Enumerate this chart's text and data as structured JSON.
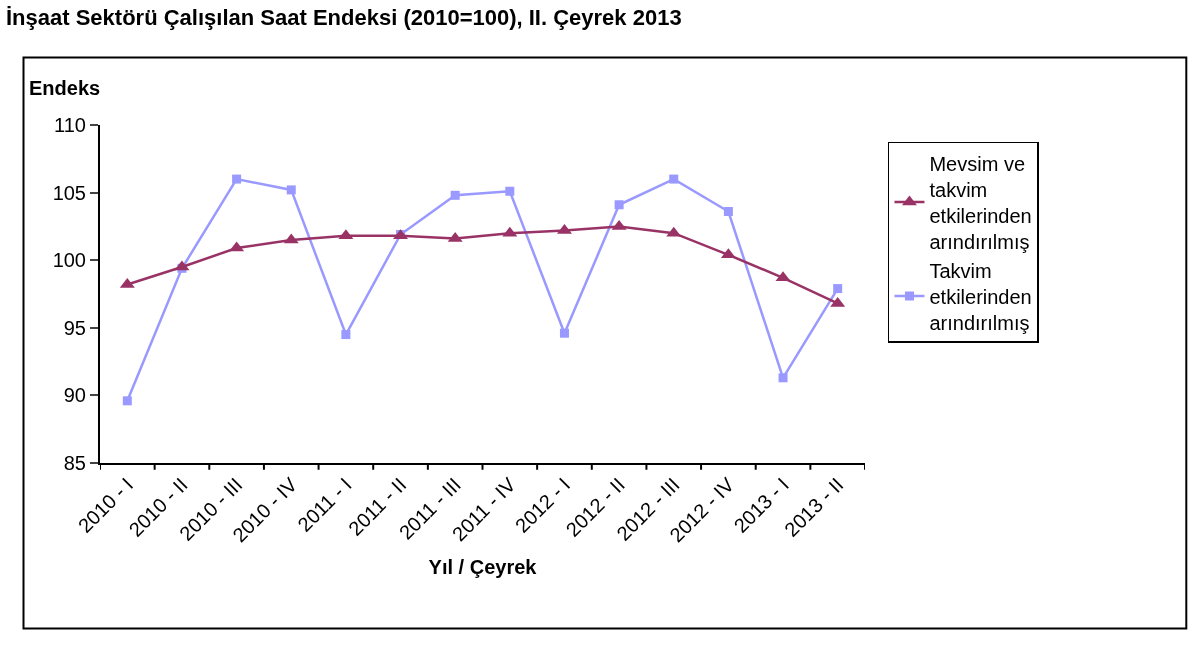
{
  "chart_data": {
    "type": "line",
    "title": "İnşaat Sektörü Çalışılan Saat Endeksi (2010=100), II. Çeyrek 2013",
    "xlabel": "Yıl / Çeyrek",
    "ylabel": "Endeks",
    "categories": [
      "2010 - I",
      "2010 - II",
      "2010 - III",
      "2010 - IV",
      "2011 - I",
      "2011 - II",
      "2011 - III",
      "2011 - IV",
      "2012 - I",
      "2012 - II",
      "2012 - III",
      "2012 - IV",
      "2013 - I",
      "2013 - II"
    ],
    "series": [
      {
        "name": "Mevsim ve takvim etkilerinden arındırılmış",
        "color": "#993366",
        "marker": "triangle",
        "values": [
          98.2,
          99.5,
          100.9,
          101.5,
          101.8,
          101.8,
          101.6,
          102.0,
          102.2,
          102.5,
          102.0,
          100.4,
          98.7,
          96.8
        ]
      },
      {
        "name": "Takvim etkilerinden arındırılmış",
        "color": "#9999ff",
        "marker": "square",
        "values": [
          89.6,
          99.4,
          106.0,
          105.2,
          94.5,
          101.9,
          104.8,
          105.1,
          94.6,
          104.1,
          106.0,
          103.6,
          91.3,
          97.9
        ]
      }
    ],
    "ylim": [
      85,
      110
    ],
    "yticks": [
      85,
      90,
      95,
      100,
      105,
      110
    ],
    "legend": "right",
    "line_style": "solid"
  }
}
